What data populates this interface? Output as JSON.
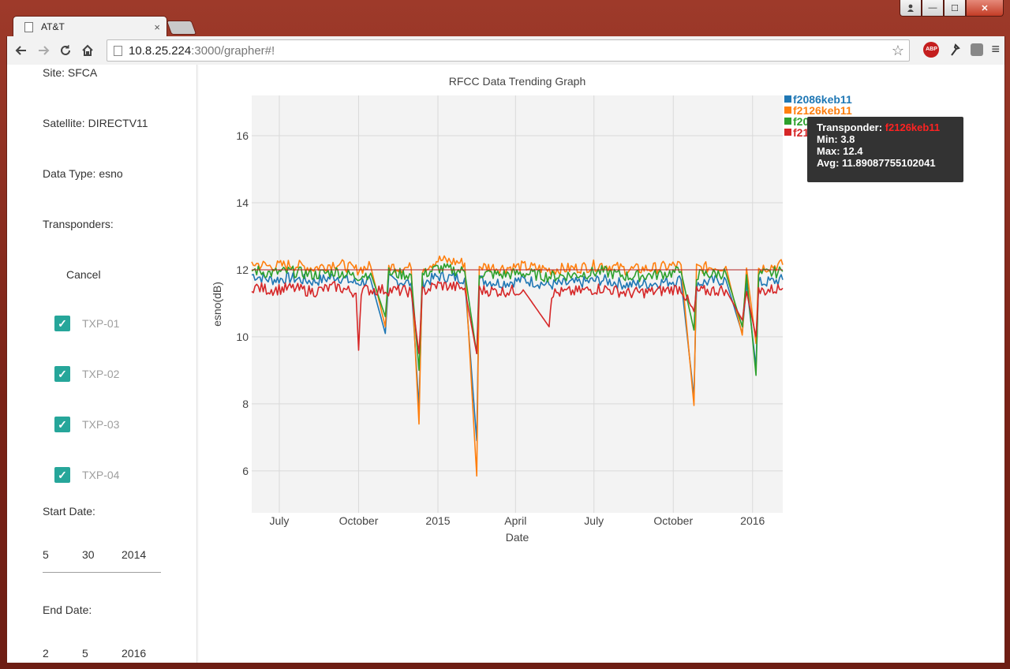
{
  "window": {
    "controls": {
      "close": "✕",
      "minimize": "—",
      "maximize": "☐"
    }
  },
  "tab": {
    "title": "AT&T",
    "close": "×"
  },
  "address_bar": {
    "host": "10.8.25.224",
    "path": ":3000/grapher#!"
  },
  "extensions": {
    "abp_label": "ABP"
  },
  "sidebar": {
    "site": "Site: SFCA",
    "satellite": "Satellite: DIRECTV11",
    "data_type": "Data Type: esno",
    "transponders_label": "Transponders:",
    "cancel_label": "Cancel",
    "transponders": [
      {
        "label": "TXP-01",
        "checked": true
      },
      {
        "label": "TXP-02",
        "checked": true
      },
      {
        "label": "TXP-03",
        "checked": true
      },
      {
        "label": "TXP-04",
        "checked": true
      }
    ],
    "start_date": {
      "label": "Start Date:",
      "month": "5",
      "day": "30",
      "year": "2014"
    },
    "end_date": {
      "label": "End Date:",
      "month": "2",
      "day": "5",
      "year": "2016"
    }
  },
  "tooltip": {
    "transponder_label": "Transponder: ",
    "transponder_value": "f2126keb11",
    "min": "Min: 3.8",
    "max": "Max: 12.4",
    "avg": "Avg: 11.89087755102041"
  },
  "chart_data": {
    "type": "line",
    "title": "RFCC Data Trending Graph",
    "xlabel": "Date",
    "ylabel": "esno(dB)",
    "x_range": [
      "2014-05-30",
      "2016-02-05"
    ],
    "ylim": [
      4.75,
      17.2
    ],
    "yticks": [
      6,
      8,
      10,
      12,
      14,
      16
    ],
    "xticks": [
      {
        "date": "2014-07-01",
        "label": "July"
      },
      {
        "date": "2014-10-01",
        "label": "October"
      },
      {
        "date": "2015-01-01",
        "label": "2015"
      },
      {
        "date": "2015-04-01",
        "label": "April"
      },
      {
        "date": "2015-07-01",
        "label": "July"
      },
      {
        "date": "2015-10-01",
        "label": "October"
      },
      {
        "date": "2016-01-01",
        "label": "2016"
      }
    ],
    "grid": true,
    "legend_position": "top-right",
    "reference_line": 12.0,
    "series": [
      {
        "name": "f2086keb11",
        "color": "#1f77b4",
        "points": [
          [
            "2014-05-30",
            11.85
          ],
          [
            "2014-06-20",
            11.7
          ],
          [
            "2014-07-15",
            11.75
          ],
          [
            "2014-08-10",
            11.65
          ],
          [
            "2014-09-05",
            11.8
          ],
          [
            "2014-09-28",
            11.6
          ],
          [
            "2014-10-15",
            11.7
          ],
          [
            "2014-11-01",
            10.1
          ],
          [
            "2014-11-05",
            11.7
          ],
          [
            "2014-12-01",
            11.6
          ],
          [
            "2014-12-10",
            7.9
          ],
          [
            "2014-12-14",
            11.6
          ],
          [
            "2015-01-01",
            11.8
          ],
          [
            "2015-02-01",
            11.75
          ],
          [
            "2015-02-15",
            6.9
          ],
          [
            "2015-02-18",
            11.7
          ],
          [
            "2015-03-15",
            11.6
          ],
          [
            "2015-04-10",
            11.7
          ],
          [
            "2015-05-10",
            11.55
          ],
          [
            "2015-06-10",
            11.6
          ],
          [
            "2015-07-10",
            11.7
          ],
          [
            "2015-08-10",
            11.55
          ],
          [
            "2015-09-10",
            11.6
          ],
          [
            "2015-10-10",
            11.7
          ],
          [
            "2015-10-25",
            8.2
          ],
          [
            "2015-10-28",
            11.6
          ],
          [
            "2015-12-01",
            11.7
          ],
          [
            "2015-12-20",
            10.1
          ],
          [
            "2015-12-25",
            11.6
          ],
          [
            "2016-01-05",
            9.1
          ],
          [
            "2016-01-08",
            11.6
          ],
          [
            "2016-02-05",
            11.7
          ]
        ]
      },
      {
        "name": "f2126keb11",
        "color": "#ff7f0e",
        "points": [
          [
            "2014-05-30",
            12.2
          ],
          [
            "2014-06-20",
            12.1
          ],
          [
            "2014-07-15",
            12.15
          ],
          [
            "2014-08-10",
            12.05
          ],
          [
            "2014-09-05",
            12.2
          ],
          [
            "2014-09-28",
            12.0
          ],
          [
            "2014-10-15",
            12.1
          ],
          [
            "2014-11-01",
            10.3
          ],
          [
            "2014-11-05",
            12.1
          ],
          [
            "2014-12-01",
            12.05
          ],
          [
            "2014-12-10",
            7.4
          ],
          [
            "2014-12-14",
            12.05
          ],
          [
            "2015-01-01",
            12.3
          ],
          [
            "2015-02-01",
            12.2
          ],
          [
            "2015-02-15",
            5.85
          ],
          [
            "2015-02-18",
            12.1
          ],
          [
            "2015-03-15",
            12.05
          ],
          [
            "2015-04-10",
            12.1
          ],
          [
            "2015-05-10",
            12.0
          ],
          [
            "2015-06-10",
            12.05
          ],
          [
            "2015-07-10",
            12.15
          ],
          [
            "2015-08-10",
            12.0
          ],
          [
            "2015-09-10",
            12.05
          ],
          [
            "2015-10-10",
            12.15
          ],
          [
            "2015-10-25",
            7.95
          ],
          [
            "2015-10-28",
            12.05
          ],
          [
            "2015-12-01",
            12.1
          ],
          [
            "2015-12-20",
            10.05
          ],
          [
            "2015-12-25",
            12.05
          ],
          [
            "2016-01-05",
            9.8
          ],
          [
            "2016-01-08",
            12.05
          ],
          [
            "2016-02-05",
            12.15
          ]
        ]
      },
      {
        "name": "f2086keb11",
        "color": "#2ca02c",
        "points": [
          [
            "2014-05-30",
            12.0
          ],
          [
            "2014-06-20",
            11.9
          ],
          [
            "2014-07-15",
            11.95
          ],
          [
            "2014-08-10",
            11.85
          ],
          [
            "2014-09-05",
            11.95
          ],
          [
            "2014-09-28",
            11.8
          ],
          [
            "2014-10-15",
            11.9
          ],
          [
            "2014-11-01",
            10.6
          ],
          [
            "2014-11-05",
            11.9
          ],
          [
            "2014-12-01",
            11.85
          ],
          [
            "2014-12-10",
            9.0
          ],
          [
            "2014-12-14",
            11.85
          ],
          [
            "2015-01-01",
            12.05
          ],
          [
            "2015-02-01",
            11.95
          ],
          [
            "2015-02-15",
            9.5
          ],
          [
            "2015-02-18",
            11.9
          ],
          [
            "2015-03-15",
            11.85
          ],
          [
            "2015-04-10",
            11.9
          ],
          [
            "2015-05-10",
            11.8
          ],
          [
            "2015-06-10",
            11.85
          ],
          [
            "2015-07-10",
            11.95
          ],
          [
            "2015-08-10",
            11.8
          ],
          [
            "2015-09-10",
            11.85
          ],
          [
            "2015-10-10",
            11.95
          ],
          [
            "2015-10-25",
            10.2
          ],
          [
            "2015-10-28",
            11.85
          ],
          [
            "2015-12-01",
            11.9
          ],
          [
            "2015-12-20",
            10.3
          ],
          [
            "2015-12-25",
            11.85
          ],
          [
            "2016-01-05",
            8.85
          ],
          [
            "2016-01-08",
            11.85
          ],
          [
            "2016-02-05",
            11.95
          ]
        ]
      },
      {
        "name": "f2126keb11",
        "color": "#d62728",
        "points": [
          [
            "2014-05-30",
            11.5
          ],
          [
            "2014-06-20",
            11.4
          ],
          [
            "2014-07-15",
            11.45
          ],
          [
            "2014-08-10",
            11.35
          ],
          [
            "2014-09-05",
            11.5
          ],
          [
            "2014-09-28",
            11.3
          ],
          [
            "2014-10-01",
            9.6
          ],
          [
            "2014-10-04",
            11.4
          ],
          [
            "2014-11-01",
            11.4
          ],
          [
            "2014-12-01",
            11.35
          ],
          [
            "2014-12-10",
            9.5
          ],
          [
            "2014-12-14",
            11.35
          ],
          [
            "2015-01-01",
            11.55
          ],
          [
            "2015-02-01",
            11.45
          ],
          [
            "2015-02-15",
            9.5
          ],
          [
            "2015-02-18",
            11.4
          ],
          [
            "2015-03-15",
            11.35
          ],
          [
            "2015-04-10",
            11.4
          ],
          [
            "2015-05-10",
            10.3
          ],
          [
            "2015-05-13",
            11.3
          ],
          [
            "2015-06-10",
            11.35
          ],
          [
            "2015-07-10",
            11.45
          ],
          [
            "2015-08-10",
            11.3
          ],
          [
            "2015-09-10",
            11.35
          ],
          [
            "2015-10-10",
            11.45
          ],
          [
            "2015-10-25",
            10.7
          ],
          [
            "2015-10-28",
            11.35
          ],
          [
            "2015-12-01",
            11.4
          ],
          [
            "2015-12-20",
            10.5
          ],
          [
            "2015-12-25",
            11.35
          ],
          [
            "2016-01-05",
            10.0
          ],
          [
            "2016-01-08",
            11.35
          ],
          [
            "2016-02-05",
            11.45
          ]
        ]
      }
    ]
  }
}
